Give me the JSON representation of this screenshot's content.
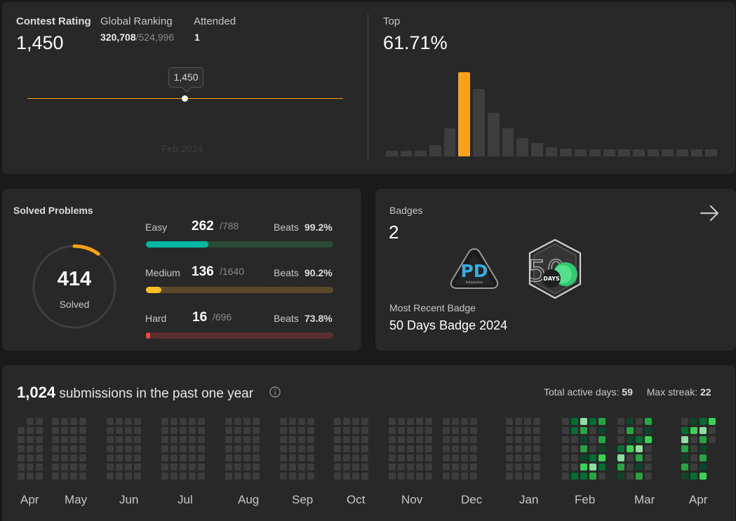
{
  "contest": {
    "rating_label": "Contest Rating",
    "rating_value": "1,450",
    "ranking_label": "Global Ranking",
    "ranking_value": "320,708",
    "ranking_total": "/524,996",
    "attended_label": "Attended",
    "attended_value": "1",
    "tooltip_value": "1,450",
    "date_label": "Feb 2024",
    "top_label": "Top",
    "top_value": "61.71%",
    "line_color": "#ffa116",
    "histogram": [
      0.07,
      0.07,
      0.07,
      0.13,
      0.33,
      1.0,
      0.8,
      0.52,
      0.33,
      0.22,
      0.16,
      0.11,
      0.09,
      0.08,
      0.08,
      0.08,
      0.08,
      0.08,
      0.08,
      0.08,
      0.08,
      0.08,
      0.08
    ],
    "highlight_index": 5
  },
  "solved": {
    "title": "Solved Problems",
    "total": "414",
    "total_label": "Solved",
    "ring_fraction": 0.1,
    "rows": [
      {
        "label": "Easy",
        "count": "262",
        "total": "/788",
        "beats_label": "Beats",
        "beats": "99.2%",
        "fraction": 0.332,
        "fill": "#00b8a3",
        "track": "#2b4a36"
      },
      {
        "label": "Medium",
        "count": "136",
        "total": "/1640",
        "beats_label": "Beats",
        "beats": "90.2%",
        "fraction": 0.083,
        "fill": "#ffc01e",
        "track": "#5a4a2a"
      },
      {
        "label": "Hard",
        "count": "16",
        "total": "/696",
        "beats_label": "Beats",
        "beats": "73.8%",
        "fraction": 0.023,
        "fill": "#ef4743",
        "track": "#5a2e2e"
      }
    ]
  },
  "badges": {
    "title": "Badges",
    "count": "2",
    "badge1_text": "PD",
    "badge1_sub": "Introduction",
    "badge2_number": "50",
    "badge2_text": "DAYS",
    "recent_label": "Most Recent Badge",
    "recent_name": "50 Days Badge 2024"
  },
  "submissions": {
    "count": "1,024",
    "text": "submissions in the past one year",
    "active_label": "Total active days:",
    "active_value": "59",
    "streak_label": "Max streak:",
    "streak_value": "22",
    "months": [
      "Apr",
      "May",
      "Jun",
      "Jul",
      "Aug",
      "Sep",
      "Oct",
      "Nov",
      "Dec",
      "Jan",
      "Feb",
      "Mar",
      "Apr"
    ],
    "colors": {
      "empty": "#3d3d3d",
      "l1": "#0e4429",
      "l2": "#006d32",
      "l3": "#26a641",
      "l4": "#39d353",
      "l5": "#8fe0a0"
    }
  }
}
